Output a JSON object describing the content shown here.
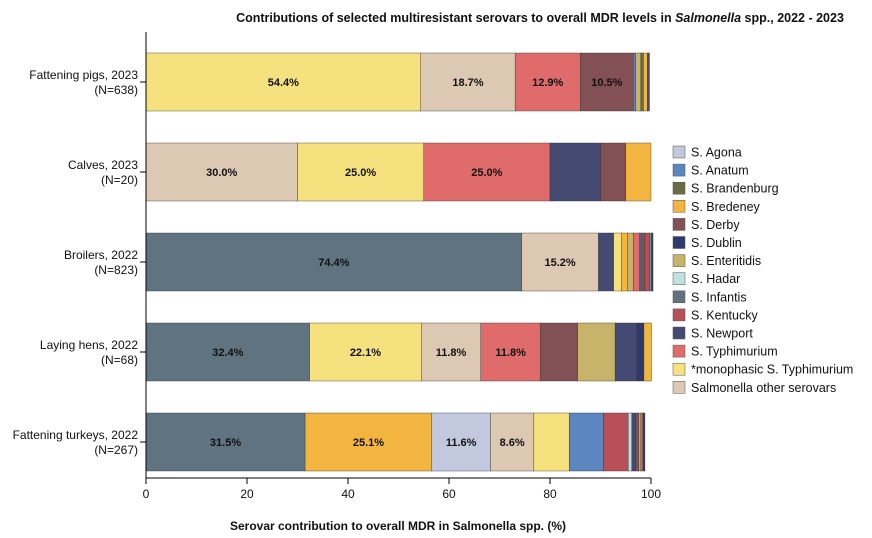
{
  "chart_data": {
    "type": "bar",
    "orientation": "horizontal",
    "stacked": true,
    "title": "Contributions of selected multiresistant serovars to overall MDR levels in Salmonella spp., 2022 - 2023",
    "title_parts": {
      "before": "Contributions of selected multiresistant serovars to overall MDR levels in ",
      "italic": "Salmonella",
      "after": " spp., 2022 - 2023"
    },
    "xlabel": "Serovar contribution to overall MDR in Salmonella spp. (%)",
    "ylabel": "",
    "xlim": [
      0,
      100
    ],
    "x_ticks": [
      0,
      20,
      40,
      60,
      80,
      100
    ],
    "grid": false,
    "legend_position": "right",
    "categories": [
      {
        "line1": "Fattening pigs, 2023",
        "line2": "(N=638)"
      },
      {
        "line1": "Calves, 2023",
        "line2": "(N=20)"
      },
      {
        "line1": "Broilers, 2022",
        "line2": "(N=823)"
      },
      {
        "line1": "Laying hens, 2022",
        "line2": "(N=68)"
      },
      {
        "line1": "Fattening turkeys, 2022",
        "line2": "(N=267)"
      }
    ],
    "series": [
      {
        "name": "S. Agona",
        "color": "#C2C8DE",
        "values": [
          0,
          0,
          0,
          0,
          11.6
        ]
      },
      {
        "name": "S. Anatum",
        "color": "#5B86C0",
        "values": [
          0.5,
          0,
          0.3,
          0,
          6.8
        ]
      },
      {
        "name": "S. Brandenburg",
        "color": "#6B6B45",
        "values": [
          0.5,
          0,
          0.2,
          0,
          0
        ]
      },
      {
        "name": "S. Bredeney",
        "color": "#F2B640",
        "values": [
          0.8,
          5.0,
          1.2,
          1.5,
          25.1
        ]
      },
      {
        "name": "S. Derby",
        "color": "#835055",
        "values": [
          10.5,
          5.0,
          0.8,
          7.4,
          0.6
        ]
      },
      {
        "name": "S. Dublin",
        "color": "#2E3A6E",
        "values": [
          0,
          0,
          0.2,
          1.4,
          0.4
        ]
      },
      {
        "name": "S. Enteritidis",
        "color": "#C7B36A",
        "values": [
          1.0,
          0,
          1.2,
          7.4,
          0.4
        ]
      },
      {
        "name": "S. Hadar",
        "color": "#BFE2DF",
        "values": [
          0,
          0,
          0.2,
          0,
          0.7
        ]
      },
      {
        "name": "S. Infantis",
        "color": "#5F7480",
        "values": [
          0,
          0,
          74.4,
          32.4,
          31.5
        ]
      },
      {
        "name": "S. Kentucky",
        "color": "#B94F58",
        "values": [
          0,
          0,
          1.0,
          0,
          4.9
        ]
      },
      {
        "name": "S. Newport",
        "color": "#454A72",
        "values": [
          0.4,
          10.0,
          3.0,
          4.3,
          0.8
        ]
      },
      {
        "name": "S. Typhimurium",
        "color": "#E06B6B",
        "values": [
          12.9,
          25.0,
          1.2,
          11.8,
          0.4
        ]
      },
      {
        "name": "*monophasic S. Typhimurium",
        "color": "#F5E27E",
        "values": [
          54.4,
          25.0,
          1.5,
          22.1,
          7.0
        ]
      },
      {
        "name": "Salmonella other serovars",
        "color": "#DCC8B3",
        "values": [
          18.7,
          30.0,
          15.2,
          11.8,
          8.6
        ]
      }
    ],
    "stack_order": [
      [
        12,
        13,
        11,
        4,
        5,
        1,
        6,
        2,
        3,
        10
      ],
      [
        13,
        12,
        11,
        10,
        4,
        3
      ],
      [
        8,
        13,
        10,
        12,
        3,
        6,
        11,
        1,
        4,
        9,
        7,
        2,
        5
      ],
      [
        8,
        12,
        13,
        11,
        4,
        6,
        10,
        5,
        3
      ],
      [
        8,
        3,
        0,
        13,
        12,
        1,
        9,
        7,
        10,
        4,
        6,
        11,
        5
      ]
    ],
    "data_labels": [
      [
        "54.4%",
        "18.7%",
        "12.9%",
        "10.5%"
      ],
      [
        "30.0%",
        "25.0%",
        "25.0%"
      ],
      [
        "74.4%",
        "15.2%"
      ],
      [
        "32.4%",
        "22.1%",
        "11.8%",
        "11.8%"
      ],
      [
        "31.5%",
        "25.1%",
        "11.6%",
        "8.6%"
      ]
    ]
  }
}
